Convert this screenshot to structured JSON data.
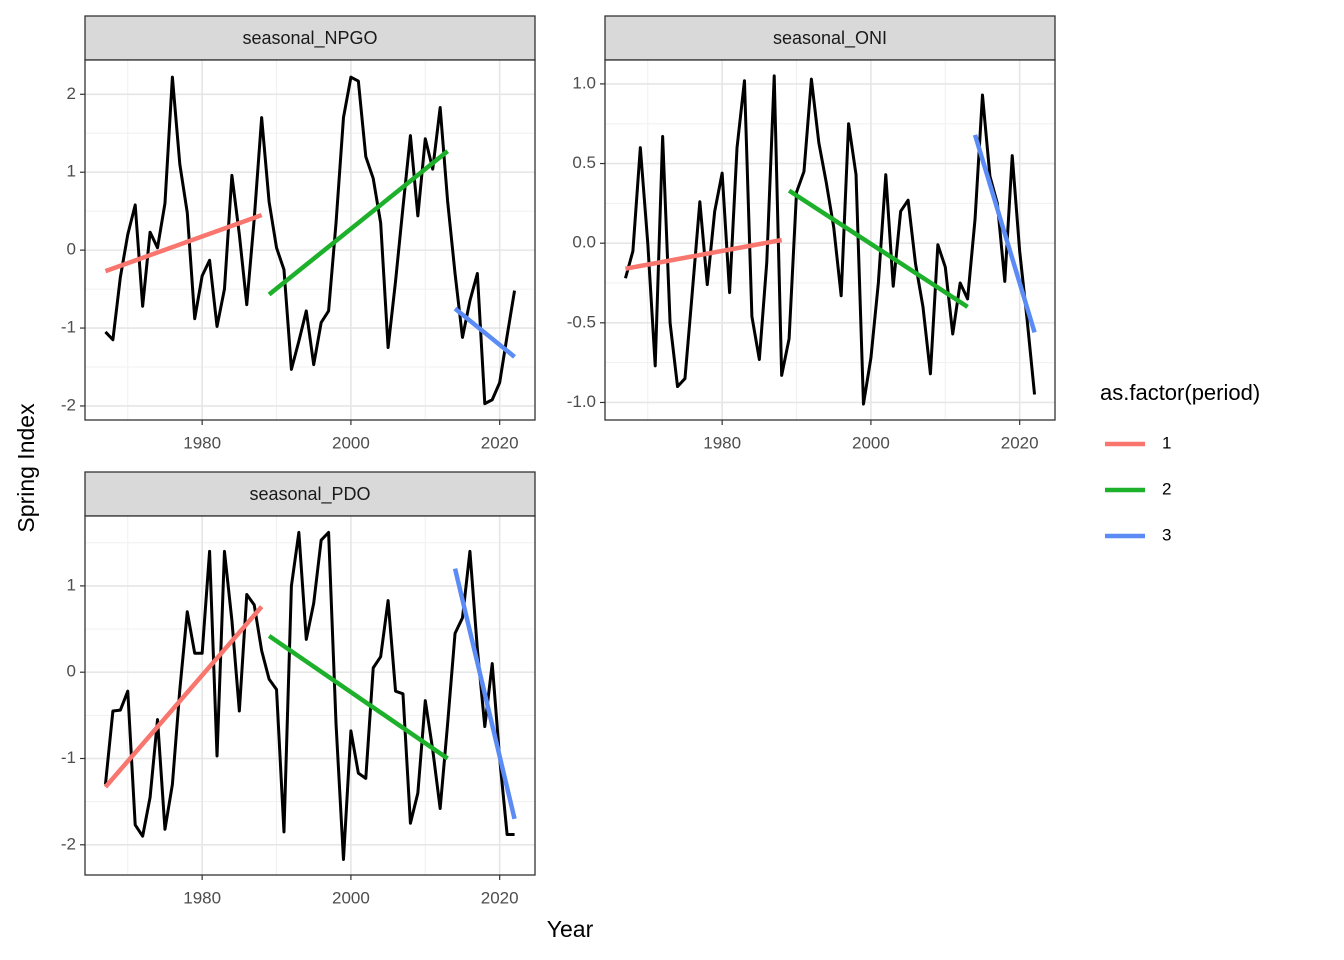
{
  "xlabel": "Year",
  "ylabel": "Spring Index",
  "legend": {
    "title": "as.factor(period)",
    "entries": [
      {
        "name": "1",
        "color": "#F8766D"
      },
      {
        "name": "2",
        "color": "#1DB02A"
      },
      {
        "name": "3",
        "color": "#5B8CF5"
      }
    ]
  },
  "chart_data": [
    {
      "type": "line",
      "title": "seasonal_NPGO",
      "grid": true,
      "xlim": [
        1964.25,
        2024.75
      ],
      "xticks": [
        1980,
        2000,
        2020
      ],
      "ylim": [
        -2.18,
        2.44
      ],
      "yticks": [
        -2,
        -1,
        0,
        1,
        2
      ],
      "x": [
        1967,
        1968,
        1969,
        1970,
        1971,
        1972,
        1973,
        1974,
        1975,
        1976,
        1977,
        1978,
        1979,
        1980,
        1981,
        1982,
        1983,
        1984,
        1985,
        1986,
        1987,
        1988,
        1989,
        1990,
        1991,
        1992,
        1993,
        1994,
        1995,
        1996,
        1997,
        1998,
        1999,
        2000,
        2001,
        2002,
        2003,
        2004,
        2005,
        2006,
        2007,
        2008,
        2009,
        2010,
        2011,
        2012,
        2013,
        2014,
        2015,
        2016,
        2017,
        2018,
        2019,
        2020,
        2021,
        2022
      ],
      "series": [
        {
          "color": "#000000",
          "values": [
            -1.05,
            -1.15,
            -0.35,
            0.2,
            0.58,
            -0.72,
            0.23,
            0.03,
            0.6,
            2.22,
            1.1,
            0.48,
            -0.88,
            -0.33,
            -0.13,
            -0.98,
            -0.5,
            0.96,
            0.2,
            -0.7,
            0.4,
            1.7,
            0.62,
            0.03,
            -0.25,
            -1.53,
            -1.17,
            -0.78,
            -1.47,
            -0.93,
            -0.78,
            0.35,
            1.7,
            2.22,
            2.17,
            1.2,
            0.92,
            0.35,
            -1.25,
            -0.4,
            0.55,
            1.47,
            0.44,
            1.43,
            1.04,
            1.83,
            0.63,
            -0.3,
            -1.12,
            -0.65,
            -0.3,
            -1.97,
            -1.92,
            -1.7,
            -1.1,
            -0.52
          ]
        }
      ],
      "trends": [
        {
          "color": "#F8766D",
          "x": [
            1967,
            1988
          ],
          "values": [
            -0.27,
            0.45
          ]
        },
        {
          "color": "#1DB02A",
          "x": [
            1989,
            2013
          ],
          "values": [
            -0.57,
            1.27
          ]
        },
        {
          "color": "#5B8CF5",
          "x": [
            2014,
            2022
          ],
          "values": [
            -0.75,
            -1.37
          ]
        }
      ]
    },
    {
      "type": "line",
      "title": "seasonal_ONI",
      "grid": true,
      "xlim": [
        1964.25,
        2024.75
      ],
      "xticks": [
        1980,
        2000,
        2020
      ],
      "ylim": [
        -1.11,
        1.15
      ],
      "yticks": [
        {
          "value": -1,
          "label": "-1.0"
        },
        -0.5,
        {
          "value": 0,
          "label": "0.0"
        },
        0.5,
        {
          "value": 1,
          "label": "1.0"
        }
      ],
      "x": [
        1967,
        1968,
        1969,
        1970,
        1971,
        1972,
        1973,
        1974,
        1975,
        1976,
        1977,
        1978,
        1979,
        1980,
        1981,
        1982,
        1983,
        1984,
        1985,
        1986,
        1987,
        1988,
        1989,
        1990,
        1991,
        1992,
        1993,
        1994,
        1995,
        1996,
        1997,
        1998,
        1999,
        2000,
        2001,
        2002,
        2003,
        2004,
        2005,
        2006,
        2007,
        2008,
        2009,
        2010,
        2011,
        2012,
        2013,
        2014,
        2015,
        2016,
        2017,
        2018,
        2019,
        2020,
        2021,
        2022
      ],
      "series": [
        {
          "color": "#000000",
          "values": [
            -0.22,
            -0.05,
            0.6,
            0.0,
            -0.77,
            0.67,
            -0.5,
            -0.9,
            -0.85,
            -0.3,
            0.26,
            -0.26,
            0.2,
            0.44,
            -0.31,
            0.6,
            1.02,
            -0.46,
            -0.73,
            -0.12,
            1.05,
            -0.83,
            -0.6,
            0.32,
            0.45,
            1.03,
            0.63,
            0.38,
            0.1,
            -0.33,
            0.75,
            0.43,
            -1.01,
            -0.72,
            -0.25,
            0.43,
            -0.27,
            0.2,
            0.27,
            -0.13,
            -0.4,
            -0.82,
            -0.01,
            -0.15,
            -0.57,
            -0.25,
            -0.35,
            0.15,
            0.93,
            0.42,
            0.25,
            -0.24,
            0.55,
            -0.05,
            -0.48,
            -0.95
          ]
        }
      ],
      "trends": [
        {
          "color": "#F8766D",
          "x": [
            1967,
            1988
          ],
          "values": [
            -0.16,
            0.02
          ]
        },
        {
          "color": "#1DB02A",
          "x": [
            1989,
            2013
          ],
          "values": [
            0.33,
            -0.4
          ]
        },
        {
          "color": "#5B8CF5",
          "x": [
            2014,
            2022
          ],
          "values": [
            0.68,
            -0.56
          ]
        }
      ]
    },
    {
      "type": "line",
      "title": "seasonal_PDO",
      "grid": true,
      "xlim": [
        1964.25,
        2024.75
      ],
      "xticks": [
        1980,
        2000,
        2020
      ],
      "ylim": [
        -2.35,
        1.81
      ],
      "yticks": [
        -2,
        -1,
        0,
        1
      ],
      "x": [
        1967,
        1968,
        1969,
        1970,
        1971,
        1972,
        1973,
        1974,
        1975,
        1976,
        1977,
        1978,
        1979,
        1980,
        1981,
        1982,
        1983,
        1984,
        1985,
        1986,
        1987,
        1988,
        1989,
        1990,
        1991,
        1992,
        1993,
        1994,
        1995,
        1996,
        1997,
        1998,
        1999,
        2000,
        2001,
        2002,
        2003,
        2004,
        2005,
        2006,
        2007,
        2008,
        2009,
        2010,
        2011,
        2012,
        2013,
        2014,
        2015,
        2016,
        2017,
        2018,
        2019,
        2020,
        2021,
        2022
      ],
      "series": [
        {
          "color": "#000000",
          "values": [
            -1.3,
            -0.45,
            -0.44,
            -0.22,
            -1.77,
            -1.9,
            -1.45,
            -0.55,
            -1.82,
            -1.3,
            -0.2,
            0.7,
            0.22,
            0.22,
            1.4,
            -0.97,
            1.4,
            0.6,
            -0.45,
            0.9,
            0.78,
            0.25,
            -0.08,
            -0.2,
            -1.85,
            1.0,
            1.62,
            0.38,
            0.8,
            1.53,
            1.62,
            -0.6,
            -2.17,
            -0.68,
            -1.17,
            -1.23,
            0.05,
            0.18,
            0.83,
            -0.22,
            -0.25,
            -1.75,
            -1.4,
            -0.33,
            -0.9,
            -1.58,
            -0.6,
            0.45,
            0.63,
            1.4,
            0.27,
            -0.63,
            0.1,
            -1.0,
            -1.88,
            -1.88
          ]
        }
      ],
      "trends": [
        {
          "color": "#F8766D",
          "x": [
            1967,
            1988
          ],
          "values": [
            -1.33,
            0.76
          ]
        },
        {
          "color": "#1DB02A",
          "x": [
            1989,
            2013
          ],
          "values": [
            0.42,
            -1.0
          ]
        },
        {
          "color": "#5B8CF5",
          "x": [
            2014,
            2022
          ],
          "values": [
            1.2,
            -1.7
          ]
        }
      ]
    }
  ]
}
